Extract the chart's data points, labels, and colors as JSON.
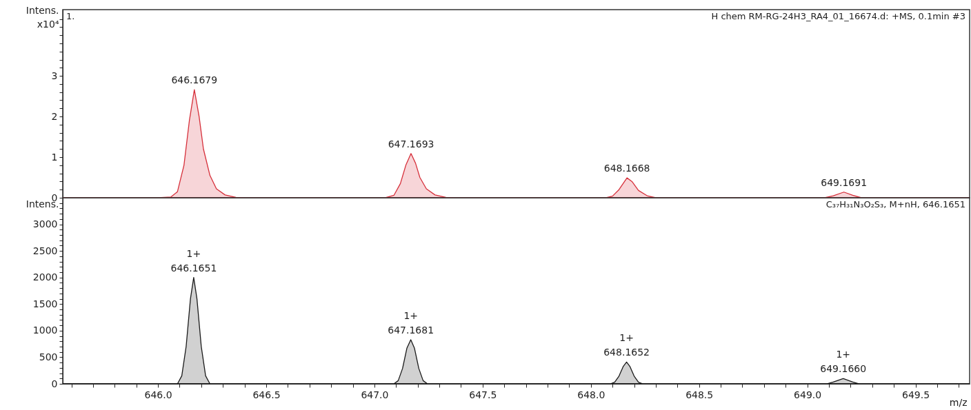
{
  "chart_data": [
    {
      "type": "area",
      "title": "1.",
      "ylabel": "Intens.\nx10⁴",
      "xlim": [
        645.56,
        649.75
      ],
      "ylim": [
        0,
        4.63
      ],
      "tick_labels": "y",
      "grid": false,
      "yticks": [
        0,
        {
          "value": 0.2,
          "label": null
        },
        {
          "value": 0.4,
          "label": null
        },
        {
          "value": 0.6,
          "label": null
        },
        {
          "value": 0.8,
          "label": null
        },
        1,
        {
          "value": 1.2,
          "label": null
        },
        {
          "value": 1.4,
          "label": null
        },
        {
          "value": 1.6,
          "label": null
        },
        {
          "value": 1.8,
          "label": null
        },
        2,
        {
          "value": 2.2,
          "label": null
        },
        {
          "value": 2.4,
          "label": null
        },
        {
          "value": 2.6,
          "label": null
        },
        {
          "value": 2.8,
          "label": null
        },
        3,
        {
          "value": 3.2,
          "label": null
        },
        {
          "value": 3.4,
          "label": null
        },
        {
          "value": 3.6,
          "label": null
        },
        {
          "value": 3.8,
          "label": null
        },
        {
          "value": 4.0,
          "label": null
        },
        {
          "value": 4.2,
          "label": null
        },
        {
          "value": 4.4,
          "label": null
        }
      ],
      "series": [
        {
          "color": "#d62f3a",
          "x": [
            645.56,
            646.0,
            646.06,
            646.09,
            646.12,
            646.145,
            646.168,
            646.19,
            646.21,
            646.24,
            646.27,
            646.31,
            646.36,
            646.4,
            647.05,
            647.09,
            647.12,
            647.145,
            647.169,
            647.19,
            647.21,
            647.24,
            647.28,
            647.33,
            647.37,
            648.07,
            648.1,
            648.13,
            648.167,
            648.19,
            648.22,
            648.26,
            648.3,
            649.08,
            649.12,
            649.169,
            649.21,
            649.25,
            649.75
          ],
          "values": [
            0,
            0,
            0.02,
            0.15,
            0.8,
            1.9,
            2.66,
            2.0,
            1.2,
            0.55,
            0.22,
            0.07,
            0.01,
            0,
            0,
            0.06,
            0.35,
            0.8,
            1.09,
            0.85,
            0.5,
            0.22,
            0.07,
            0.01,
            0,
            0,
            0.04,
            0.2,
            0.49,
            0.4,
            0.18,
            0.05,
            0,
            0,
            0.05,
            0.14,
            0.06,
            0,
            0
          ]
        }
      ],
      "annotations": [
        "H chem RM-RG-24H3_RA4_01_16674.d: +MS, 0.1min #3",
        {
          "text": "646.1679",
          "x": 646.1679,
          "y": 2.66
        },
        {
          "text": "647.1693",
          "x": 647.1693,
          "y": 1.09
        },
        {
          "text": "648.1668",
          "x": 648.1668,
          "y": 0.49
        },
        {
          "text": "649.1691",
          "x": 649.1691,
          "y": 0.14
        }
      ]
    },
    {
      "type": "area",
      "ylabel": "Intens.",
      "xlabel": "m/z",
      "xlim": [
        645.56,
        649.75
      ],
      "ylim": [
        0,
        3500
      ],
      "grid": false,
      "xticks": [
        {
          "value": 645.6,
          "label": null
        },
        {
          "value": 645.7,
          "label": null
        },
        {
          "value": 645.8,
          "label": null
        },
        {
          "value": 645.9,
          "label": null
        },
        {
          "value": 646.0,
          "label": "646.0"
        },
        {
          "value": 646.1,
          "label": null
        },
        {
          "value": 646.2,
          "label": null
        },
        {
          "value": 646.3,
          "label": null
        },
        {
          "value": 646.4,
          "label": null
        },
        646.5,
        {
          "value": 646.6,
          "label": null
        },
        {
          "value": 646.7,
          "label": null
        },
        {
          "value": 646.8,
          "label": null
        },
        {
          "value": 646.9,
          "label": null
        },
        {
          "value": 647.0,
          "label": "647.0"
        },
        {
          "value": 647.1,
          "label": null
        },
        {
          "value": 647.2,
          "label": null
        },
        {
          "value": 647.3,
          "label": null
        },
        {
          "value": 647.4,
          "label": null
        },
        647.5,
        {
          "value": 647.6,
          "label": null
        },
        {
          "value": 647.7,
          "label": null
        },
        {
          "value": 647.8,
          "label": null
        },
        {
          "value": 647.9,
          "label": null
        },
        {
          "value": 648.0,
          "label": "648.0"
        },
        {
          "value": 648.1,
          "label": null
        },
        {
          "value": 648.2,
          "label": null
        },
        {
          "value": 648.3,
          "label": null
        },
        {
          "value": 648.4,
          "label": null
        },
        648.5,
        {
          "value": 648.6,
          "label": null
        },
        {
          "value": 648.7,
          "label": null
        },
        {
          "value": 648.8,
          "label": null
        },
        {
          "value": 648.9,
          "label": null
        },
        {
          "value": 649.0,
          "label": "649.0"
        },
        {
          "value": 649.1,
          "label": null
        },
        {
          "value": 649.2,
          "label": null
        },
        {
          "value": 649.3,
          "label": null
        },
        {
          "value": 649.4,
          "label": null
        },
        649.5,
        {
          "value": 649.6,
          "label": null
        },
        {
          "value": 649.7,
          "label": null
        }
      ],
      "yticks": [
        0,
        {
          "value": 100,
          "label": null
        },
        {
          "value": 200,
          "label": null
        },
        {
          "value": 300,
          "label": null
        },
        {
          "value": 400,
          "label": null
        },
        500,
        {
          "value": 600,
          "label": null
        },
        {
          "value": 700,
          "label": null
        },
        {
          "value": 800,
          "label": null
        },
        {
          "value": 900,
          "label": null
        },
        1000,
        {
          "value": 1100,
          "label": null
        },
        {
          "value": 1200,
          "label": null
        },
        {
          "value": 1300,
          "label": null
        },
        {
          "value": 1400,
          "label": null
        },
        1500,
        {
          "value": 1600,
          "label": null
        },
        {
          "value": 1700,
          "label": null
        },
        {
          "value": 1800,
          "label": null
        },
        {
          "value": 1900,
          "label": null
        },
        2000,
        {
          "value": 2100,
          "label": null
        },
        {
          "value": 2200,
          "label": null
        },
        {
          "value": 2300,
          "label": null
        },
        {
          "value": 2400,
          "label": null
        },
        2500,
        {
          "value": 2600,
          "label": null
        },
        {
          "value": 2700,
          "label": null
        },
        {
          "value": 2800,
          "label": null
        },
        {
          "value": 2900,
          "label": null
        },
        3000,
        {
          "value": 3100,
          "label": null
        },
        {
          "value": 3200,
          "label": null
        },
        {
          "value": 3300,
          "label": null
        },
        {
          "value": 3400,
          "label": null
        }
      ],
      "series": [
        {
          "color": "#1a1a1a",
          "x": [
            645.56,
            646.09,
            646.11,
            646.13,
            646.15,
            646.165,
            646.18,
            646.2,
            646.22,
            646.24,
            647.09,
            647.11,
            647.13,
            647.15,
            647.168,
            647.185,
            647.205,
            647.225,
            647.245,
            648.09,
            648.11,
            648.13,
            648.15,
            648.165,
            648.18,
            648.2,
            648.22,
            648.24,
            649.09,
            649.12,
            649.166,
            649.21,
            649.24,
            649.75
          ],
          "values": [
            0,
            0,
            150,
            700,
            1600,
            2000,
            1600,
            700,
            150,
            0,
            0,
            60,
            290,
            670,
            830,
            670,
            290,
            60,
            0,
            0,
            30,
            145,
            330,
            410,
            330,
            145,
            30,
            0,
            0,
            35,
            100,
            35,
            0,
            0
          ]
        }
      ],
      "annotations": [
        "C₃₇H₃₁N₃O₂S₃, M+nH, 646.1651",
        {
          "text": "1+\n646.1651",
          "x": 646.1651,
          "y": 2000
        },
        {
          "text": "1+\n647.1681",
          "x": 647.1681,
          "y": 830
        },
        {
          "text": "1+\n648.1652",
          "x": 648.1652,
          "y": 410
        },
        {
          "text": "1+\n649.1660",
          "x": 649.166,
          "y": 100
        }
      ]
    }
  ]
}
